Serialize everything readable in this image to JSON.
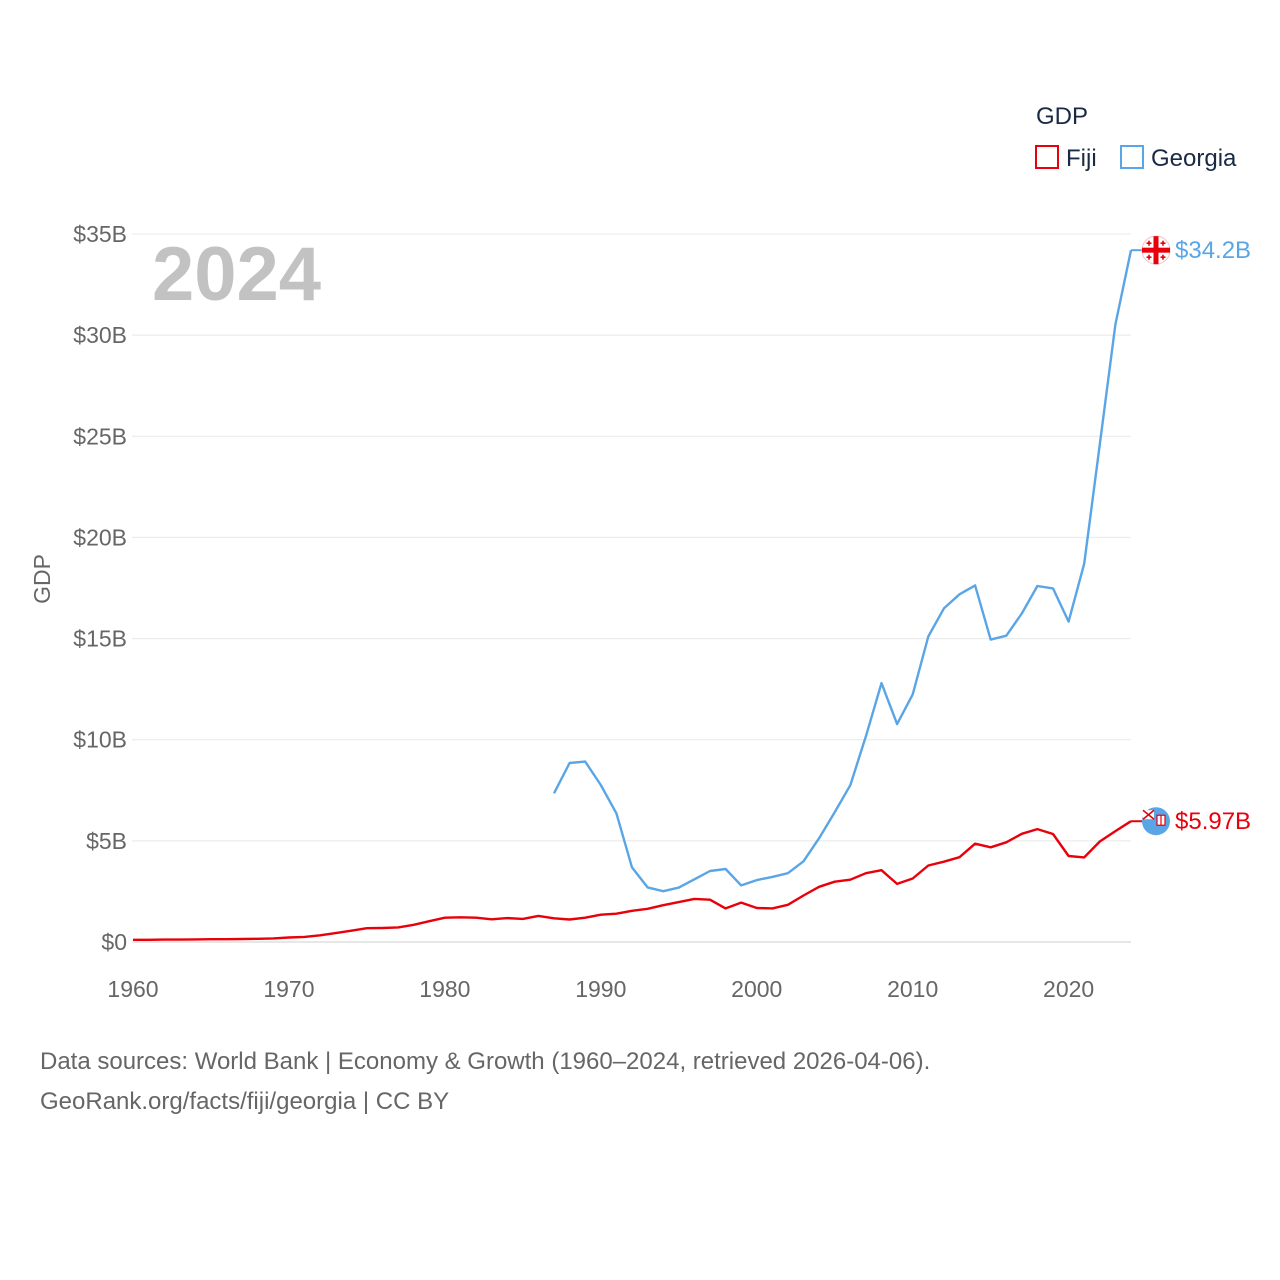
{
  "chart_data": {
    "type": "line",
    "title": "",
    "year_watermark": "2024",
    "ylabel": "GDP",
    "xlabel": "",
    "xlim": [
      1960,
      2024
    ],
    "ylim": [
      0,
      35
    ],
    "x_ticks": [
      1960,
      1970,
      1980,
      1990,
      2000,
      2010,
      2020
    ],
    "y_ticks": [
      {
        "value": 0,
        "label": "$0"
      },
      {
        "value": 5,
        "label": "$5B"
      },
      {
        "value": 10,
        "label": "$10B"
      },
      {
        "value": 15,
        "label": "$15B"
      },
      {
        "value": 20,
        "label": "$20B"
      },
      {
        "value": 25,
        "label": "$25B"
      },
      {
        "value": 30,
        "label": "$30B"
      },
      {
        "value": 35,
        "label": "$35B"
      }
    ],
    "legend": {
      "title": "GDP",
      "position": "top-right",
      "entries": [
        {
          "name": "Fiji",
          "color": "#e8000b"
        },
        {
          "name": "Georgia",
          "color": "#5aa5e6"
        }
      ]
    },
    "grid": true,
    "series": [
      {
        "name": "Fiji",
        "color": "#e8000b",
        "end_label": "$5.97B",
        "end_icon": "fiji-flag-icon",
        "x": [
          1960,
          1961,
          1962,
          1963,
          1964,
          1965,
          1966,
          1967,
          1968,
          1969,
          1970,
          1971,
          1972,
          1973,
          1974,
          1975,
          1976,
          1977,
          1978,
          1979,
          1980,
          1981,
          1982,
          1983,
          1984,
          1985,
          1986,
          1987,
          1988,
          1989,
          1990,
          1991,
          1992,
          1993,
          1994,
          1995,
          1996,
          1997,
          1998,
          1999,
          2000,
          2001,
          2002,
          2003,
          2004,
          2005,
          2006,
          2007,
          2008,
          2009,
          2010,
          2011,
          2012,
          2013,
          2014,
          2015,
          2016,
          2017,
          2018,
          2019,
          2020,
          2021,
          2022,
          2023,
          2024
        ],
        "values": [
          0.11,
          0.11,
          0.12,
          0.12,
          0.13,
          0.14,
          0.14,
          0.15,
          0.16,
          0.18,
          0.22,
          0.25,
          0.33,
          0.44,
          0.56,
          0.68,
          0.69,
          0.72,
          0.85,
          1.03,
          1.2,
          1.22,
          1.2,
          1.12,
          1.18,
          1.14,
          1.29,
          1.17,
          1.11,
          1.2,
          1.35,
          1.4,
          1.54,
          1.64,
          1.82,
          1.97,
          2.13,
          2.09,
          1.66,
          1.95,
          1.68,
          1.66,
          1.84,
          2.3,
          2.73,
          2.98,
          3.08,
          3.4,
          3.55,
          2.87,
          3.14,
          3.78,
          3.97,
          4.19,
          4.86,
          4.68,
          4.93,
          5.35,
          5.58,
          5.34,
          4.25,
          4.18,
          4.97,
          5.48,
          5.97
        ]
      },
      {
        "name": "Georgia",
        "color": "#5aa5e6",
        "end_label": "$34.2B",
        "end_icon": "georgia-flag-icon",
        "x": [
          1987,
          1988,
          1989,
          1990,
          1991,
          1992,
          1993,
          1994,
          1995,
          1996,
          1997,
          1998,
          1999,
          2000,
          2001,
          2002,
          2003,
          2004,
          2005,
          2006,
          2007,
          2008,
          2009,
          2010,
          2011,
          2012,
          2013,
          2014,
          2015,
          2016,
          2017,
          2018,
          2019,
          2020,
          2021,
          2022,
          2023,
          2024
        ],
        "values": [
          7.35,
          8.85,
          8.92,
          7.76,
          6.36,
          3.69,
          2.7,
          2.51,
          2.69,
          3.1,
          3.51,
          3.61,
          2.8,
          3.06,
          3.22,
          3.4,
          3.99,
          5.13,
          6.41,
          7.75,
          10.17,
          12.8,
          10.77,
          12.24,
          15.1,
          16.49,
          17.19,
          17.63,
          14.95,
          15.14,
          16.24,
          17.6,
          17.48,
          15.84,
          18.7,
          24.6,
          30.53,
          34.2
        ]
      }
    ]
  },
  "footer": {
    "line1": "Data sources: World Bank | Economy & Growth (1960–2024, retrieved 2026-04-06).",
    "line2": "GeoRank.org/facts/fiji/georgia | CC BY"
  }
}
